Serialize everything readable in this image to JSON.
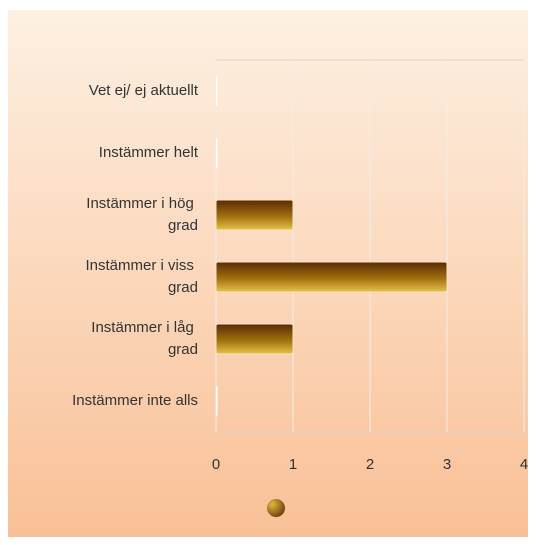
{
  "chart_data": {
    "type": "bar",
    "orientation": "horizontal",
    "categories": [
      "Vet ej/ ej aktuellt",
      "Instämmer helt",
      "Instämmer i hög grad",
      "Instämmer i viss grad",
      "Instämmer i låg grad",
      "Instämmer inte alls"
    ],
    "values": [
      0,
      0,
      1,
      3,
      1,
      0
    ],
    "color": "#a0700f",
    "xlim": [
      0,
      4
    ],
    "xticks": [
      0,
      1,
      2,
      3,
      4
    ],
    "grid": true,
    "legend": "bottom"
  }
}
